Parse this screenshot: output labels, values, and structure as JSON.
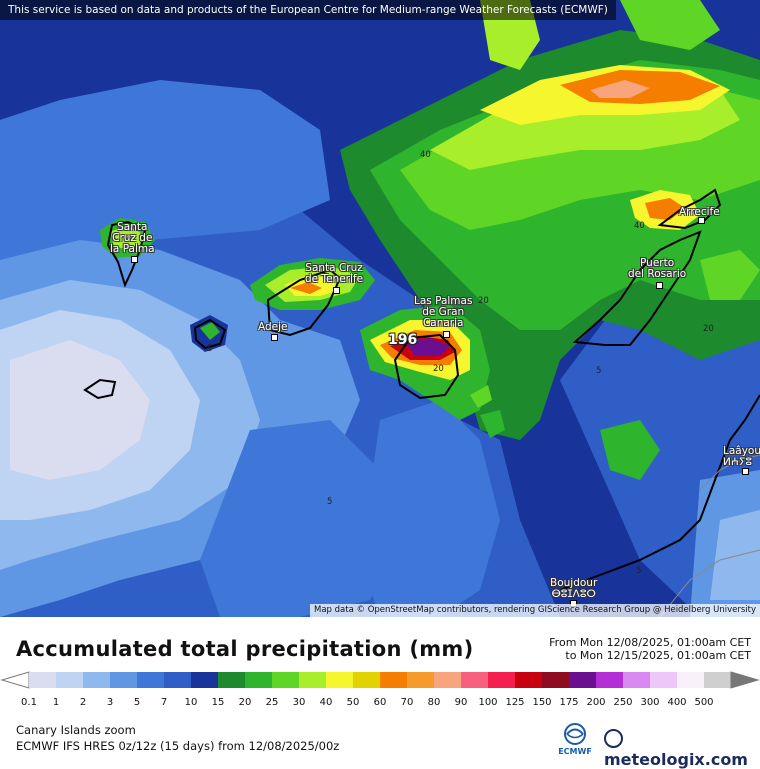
{
  "map": {
    "disclaimer": "This service is based on data and products of the European Centre for Medium-range Weather Forecasts (ECMWF)",
    "attribution": "Map data © OpenStreetMap contributors, rendering GIScience Research Group @ Heidelberg University",
    "max_value": "196",
    "cities": [
      {
        "label": "Santa\nCruz de\nla Palma"
      },
      {
        "label": "Santa Cruz\nde Tenerife"
      },
      {
        "label": "Adeje"
      },
      {
        "label": "Las Palmas\nde Gran\nCanaria"
      },
      {
        "label": "Puerto\ndel Rosario"
      },
      {
        "label": "Arrecife"
      },
      {
        "label": "Laâyou\nⵍⵄⵢⵓ"
      },
      {
        "label": "Boujdour\nⴱⵓⵊⴷⵓⵔ"
      }
    ],
    "isolines": [
      "40",
      "40",
      "20",
      "20",
      "5",
      "5",
      "5",
      "5",
      "20",
      "5"
    ]
  },
  "legend": {
    "title": "Accumulated total precipitation (mm)",
    "from": "From Mon 12/08/2025, 01:00am CET",
    "to": "to Mon 12/15/2025, 01:00am CET",
    "region": "Canary Islands zoom",
    "model": "ECMWF IFS HRES 0z/12z (15 days) from 12/08/2025/00z",
    "ecmwf_label": "ECMWF",
    "brand": "meteologix.com",
    "scale": [
      {
        "label": "0.1",
        "color": "#dadcf0"
      },
      {
        "label": "1",
        "color": "#bfd3f2"
      },
      {
        "label": "2",
        "color": "#8fb9ee"
      },
      {
        "label": "3",
        "color": "#5f97e4"
      },
      {
        "label": "5",
        "color": "#3f77d8"
      },
      {
        "label": "7",
        "color": "#2f5fc6"
      },
      {
        "label": "10",
        "color": "#18349a"
      },
      {
        "label": "15",
        "color": "#1e8a2e"
      },
      {
        "label": "20",
        "color": "#2fb52d"
      },
      {
        "label": "25",
        "color": "#5fd626"
      },
      {
        "label": "30",
        "color": "#a8ee2a"
      },
      {
        "label": "40",
        "color": "#f6f62e"
      },
      {
        "label": "50",
        "color": "#e2d300"
      },
      {
        "label": "60",
        "color": "#f57d00"
      },
      {
        "label": "70",
        "color": "#f79a2c"
      },
      {
        "label": "80",
        "color": "#f8a47d"
      },
      {
        "label": "90",
        "color": "#f8607f"
      },
      {
        "label": "100",
        "color": "#f41f4f"
      },
      {
        "label": "125",
        "color": "#c8000f"
      },
      {
        "label": "150",
        "color": "#8f0b1f"
      },
      {
        "label": "175",
        "color": "#6a0f8f"
      },
      {
        "label": "200",
        "color": "#b430d6"
      },
      {
        "label": "250",
        "color": "#d88af0"
      },
      {
        "label": "300",
        "color": "#ecc7f8"
      },
      {
        "label": "400",
        "color": "#f8f0fb"
      },
      {
        "label": "500",
        "color": "#cfcfcf"
      }
    ]
  }
}
